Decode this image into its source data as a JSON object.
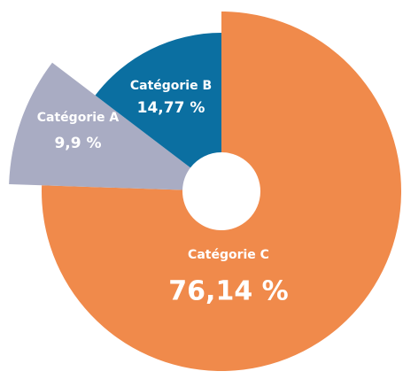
{
  "chart_data": {
    "type": "pie",
    "categories": [
      "Catégorie C",
      "Catégorie A",
      "Catégorie B"
    ],
    "values": [
      76.14,
      9.9,
      14.77
    ],
    "value_labels": [
      "76,14 %",
      "9,9 %",
      "14,77 %"
    ],
    "colors": [
      "#f08a4b",
      "#a9acc3",
      "#0b6fa1"
    ]
  }
}
